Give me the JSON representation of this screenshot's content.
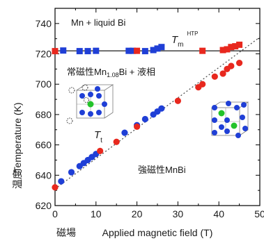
{
  "chart_data": {
    "type": "scatter",
    "xlabel": "Applied magnetic field (T)",
    "xlabel_prefix": "磁場",
    "ylabel": "Temperature (K)",
    "ylabel_prefix": "温度",
    "xlim": [
      0,
      50
    ],
    "ylim": [
      620,
      750
    ],
    "xticks": [
      0,
      10,
      20,
      30,
      40,
      50
    ],
    "yticks": [
      620,
      640,
      660,
      680,
      700,
      720,
      740
    ],
    "grid": false,
    "colors": {
      "blue": "#1f3fd6",
      "red": "#e8281e",
      "line": "#000000",
      "frame": "#000000"
    },
    "annotations": {
      "region_top": "Mn + liquid Bi",
      "region_middle_main": "常磁性Mn",
      "region_middle_sub": "1.08",
      "region_middle_tail": "Bi + 液相",
      "region_bottom": "強磁性MnBi",
      "thtp_main": "T",
      "thtp_sub": "m",
      "thtp_sup": "HTP",
      "tt_main": "T",
      "tt_sub": "t"
    },
    "thtp_line": {
      "x": [
        0,
        50
      ],
      "y": [
        722,
        722
      ]
    },
    "tt_line": {
      "x": [
        0,
        50
      ],
      "y": [
        631,
        731
      ]
    },
    "series": [
      {
        "marker_color": "blue",
        "points": [
          [
            2,
            722.2
          ],
          [
            6,
            721.8
          ],
          [
            8,
            721.8
          ],
          [
            10,
            722
          ],
          [
            18,
            722
          ],
          [
            19,
            722
          ],
          [
            22,
            721.8
          ],
          [
            24,
            722.5
          ],
          [
            25,
            723.5
          ],
          [
            26,
            724.5
          ],
          [
            1.5,
            636
          ],
          [
            4,
            642
          ],
          [
            6,
            646
          ],
          [
            7,
            648
          ],
          [
            8,
            650
          ],
          [
            9,
            652
          ],
          [
            10,
            654
          ],
          [
            17,
            668
          ],
          [
            20,
            673
          ],
          [
            22,
            677
          ],
          [
            24,
            680
          ],
          [
            25,
            682
          ],
          [
            26,
            684
          ]
        ]
      },
      {
        "marker_color": "red",
        "points": [
          [
            0,
            721.8
          ],
          [
            20,
            722
          ],
          [
            36,
            722
          ],
          [
            41,
            722.5
          ],
          [
            42,
            723
          ],
          [
            43,
            724.5
          ],
          [
            44,
            725
          ],
          [
            45,
            726
          ],
          [
            0,
            632
          ],
          [
            11,
            656
          ],
          [
            15,
            662
          ],
          [
            20,
            672
          ],
          [
            30,
            689
          ],
          [
            35,
            698
          ],
          [
            36,
            700
          ],
          [
            39,
            705
          ],
          [
            41,
            707
          ],
          [
            42,
            710
          ],
          [
            43,
            712
          ],
          [
            45,
            714
          ]
        ]
      }
    ]
  }
}
